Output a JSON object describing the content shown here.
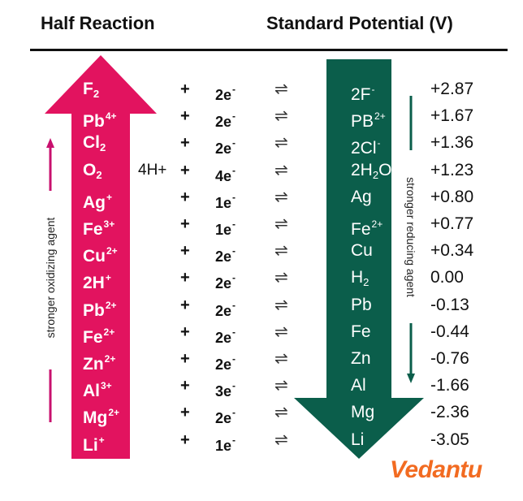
{
  "header": {
    "left": "Half Reaction",
    "right": "Standard Potential (V)"
  },
  "side_labels": {
    "oxidizing": "stronger oxidizing agent",
    "reducing": "stronger reducing agent"
  },
  "logo": "Vedantu",
  "colors": {
    "oxidizer_arrow": "#e2135f",
    "reducer_arrow": "#0b5e4b",
    "logo": "#f26b21"
  },
  "rows": [
    {
      "ox": "F",
      "ox_sub": "2",
      "ox_sup": "",
      "prefix": "",
      "electrons": "2e",
      "red": "2F",
      "red_sup": "-",
      "red_sub": "",
      "red_tail": "",
      "potential": "+2.87"
    },
    {
      "ox": "Pb",
      "ox_sub": "",
      "ox_sup": "4+",
      "prefix": "",
      "electrons": "2e",
      "red": "PB",
      "red_sup": "2+",
      "red_sub": "",
      "red_tail": "",
      "potential": "+1.67"
    },
    {
      "ox": "Cl",
      "ox_sub": "2",
      "ox_sup": "",
      "prefix": "",
      "electrons": "2e",
      "red": "2Cl",
      "red_sup": "-",
      "red_sub": "",
      "red_tail": "",
      "potential": "+1.36"
    },
    {
      "ox": "O",
      "ox_sub": "2",
      "ox_sup": "",
      "prefix": "4H+",
      "electrons": "4e",
      "red": "2H",
      "red_sup": "",
      "red_sub": "2",
      "red_tail": "O",
      "potential": "+1.23"
    },
    {
      "ox": "Ag",
      "ox_sub": "",
      "ox_sup": "+",
      "prefix": "",
      "electrons": "1e",
      "red": "Ag",
      "red_sup": "",
      "red_sub": "",
      "red_tail": "",
      "potential": "+0.80"
    },
    {
      "ox": "Fe",
      "ox_sub": "",
      "ox_sup": "3+",
      "prefix": "",
      "electrons": "1e",
      "red": "Fe",
      "red_sup": "2+",
      "red_sub": "",
      "red_tail": "",
      "potential": "+0.77"
    },
    {
      "ox": "Cu",
      "ox_sub": "",
      "ox_sup": "2+",
      "prefix": "",
      "electrons": "2e",
      "red": "Cu",
      "red_sup": "",
      "red_sub": "",
      "red_tail": "",
      "potential": "+0.34"
    },
    {
      "ox": "2H",
      "ox_sub": "",
      "ox_sup": "+",
      "prefix": "",
      "electrons": "2e",
      "red": "H",
      "red_sup": "",
      "red_sub": "2",
      "red_tail": "",
      "potential": "0.00"
    },
    {
      "ox": "Pb",
      "ox_sub": "",
      "ox_sup": "2+",
      "prefix": "",
      "electrons": "2e",
      "red": "Pb",
      "red_sup": "",
      "red_sub": "",
      "red_tail": "",
      "potential": "-0.13"
    },
    {
      "ox": "Fe",
      "ox_sub": "",
      "ox_sup": "2+",
      "prefix": "",
      "electrons": "2e",
      "red": "Fe",
      "red_sup": "",
      "red_sub": "",
      "red_tail": "",
      "potential": "-0.44"
    },
    {
      "ox": "Zn",
      "ox_sub": "",
      "ox_sup": "2+",
      "prefix": "",
      "electrons": "2e",
      "red": "Zn",
      "red_sup": "",
      "red_sub": "",
      "red_tail": "",
      "potential": "-0.76"
    },
    {
      "ox": "Al",
      "ox_sub": "",
      "ox_sup": "3+",
      "prefix": "",
      "electrons": "3e",
      "red": "Al",
      "red_sup": "",
      "red_sub": "",
      "red_tail": "",
      "potential": "-1.66"
    },
    {
      "ox": "Mg",
      "ox_sub": "",
      "ox_sup": "2+",
      "prefix": "",
      "electrons": "2e",
      "red": "Mg",
      "red_sup": "",
      "red_sub": "",
      "red_tail": "",
      "potential": "-2.36"
    },
    {
      "ox": "Li",
      "ox_sub": "",
      "ox_sup": "+",
      "prefix": "",
      "electrons": "1e",
      "red": "Li",
      "red_sup": "",
      "red_sub": "",
      "red_tail": "",
      "potential": "-3.05"
    }
  ],
  "symbols": {
    "plus": "+",
    "electron_charge": "-",
    "equilibrium": "⇌"
  }
}
